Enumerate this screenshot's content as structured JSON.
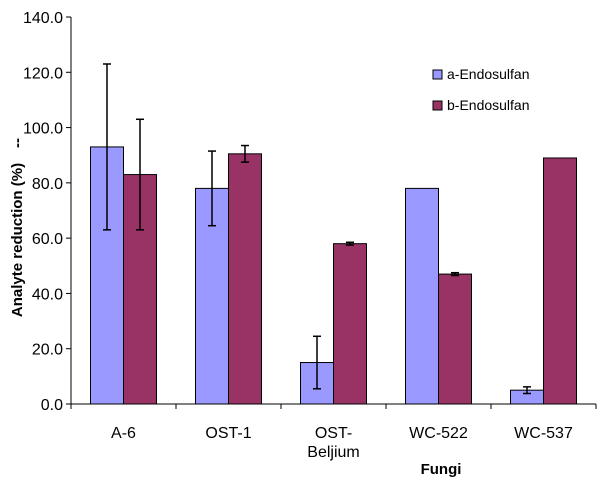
{
  "chart_data": {
    "type": "bar",
    "title": "",
    "xlabel": "Fungi",
    "ylabel": "Analyte reduction (%)",
    "ylabel_suffix": "--",
    "ylim": [
      0,
      140
    ],
    "yticks": [
      "0.0",
      "20.0",
      "40.0",
      "60.0",
      "80.0",
      "100.0",
      "120.0",
      "140.0"
    ],
    "ytick_values": [
      0,
      20,
      40,
      60,
      80,
      100,
      120,
      140
    ],
    "grid": false,
    "legend_position": "top-right",
    "categories": [
      [
        "A-6"
      ],
      [
        "OST-1"
      ],
      [
        "OST-",
        "Beljium"
      ],
      [
        "WC-522"
      ],
      [
        "WC-537"
      ]
    ],
    "series": [
      {
        "name": "a-Endosulfan",
        "color": "#9999ff",
        "values": [
          93.0,
          78.0,
          15.0,
          78.0,
          5.0
        ],
        "error": [
          30.0,
          13.5,
          9.5,
          null,
          1.2
        ]
      },
      {
        "name": "b-Endosulfan",
        "color": "#993366",
        "values": [
          83.0,
          90.5,
          58.0,
          47.0,
          89.0
        ],
        "error": [
          20.0,
          3.0,
          0.5,
          0.5,
          null
        ]
      }
    ]
  }
}
